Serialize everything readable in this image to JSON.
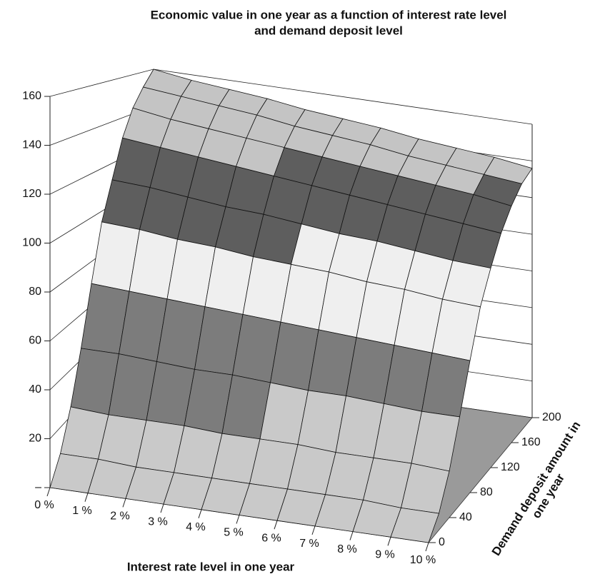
{
  "chart_data": {
    "type": "surface",
    "title": [
      "Economic value in one year as a function of interest rate level",
      "and demand deposit level"
    ],
    "xlabel": "Interest rate level in one year",
    "ylabel": [
      "Demand deposit amount in",
      "one year"
    ],
    "x": [
      0,
      1,
      2,
      3,
      4,
      5,
      6,
      7,
      8,
      9,
      10
    ],
    "y": [
      0,
      20,
      40,
      60,
      80,
      100,
      120,
      140,
      160,
      180,
      200
    ],
    "z": [
      [
        0,
        0,
        0,
        0,
        0,
        0,
        0,
        0,
        0,
        0,
        0
      ],
      [
        9,
        9,
        8,
        8,
        8,
        8,
        8,
        8,
        8,
        7,
        7
      ],
      [
        24,
        23,
        23,
        23,
        22,
        22,
        22,
        21,
        21,
        21,
        20
      ],
      [
        45,
        45,
        44,
        43,
        43,
        42,
        41,
        41,
        40,
        39,
        39
      ],
      [
        70,
        69,
        68,
        67,
        66,
        65,
        64,
        63,
        62,
        61,
        60
      ],
      [
        95,
        94,
        92,
        91,
        89,
        88,
        87,
        85,
        84,
        82,
        81
      ],
      [
        112,
        111,
        109,
        107,
        106,
        104,
        102,
        101,
        99,
        97,
        96
      ],
      [
        130,
        128,
        126,
        124,
        122,
        120,
        118,
        116,
        114,
        112,
        110
      ],
      [
        143,
        140,
        138,
        136,
        134,
        132,
        130,
        128,
        126,
        124,
        121
      ],
      [
        152,
        150,
        148,
        146,
        143,
        141,
        139,
        136,
        134,
        132,
        130
      ],
      [
        160,
        157,
        155,
        153,
        150,
        148,
        146,
        143,
        141,
        139,
        136
      ]
    ],
    "xlim": [
      0,
      10
    ],
    "ylim": [
      0,
      200
    ],
    "zlim": [
      0,
      160
    ],
    "xticks": [
      {
        "value": 0,
        "label": "0 %"
      },
      {
        "value": 1,
        "label": "1 %"
      },
      {
        "value": 2,
        "label": "2 %"
      },
      {
        "value": 3,
        "label": "3 %"
      },
      {
        "value": 4,
        "label": "4 %"
      },
      {
        "value": 5,
        "label": "5 %"
      },
      {
        "value": 6,
        "label": "6 %"
      },
      {
        "value": 7,
        "label": "7 %"
      },
      {
        "value": 8,
        "label": "8 %"
      },
      {
        "value": 9,
        "label": "9 %"
      },
      {
        "value": 10,
        "label": "10 %"
      }
    ],
    "yticks": [
      0,
      40,
      80,
      120,
      160,
      200
    ],
    "zticks": [
      {
        "value": 0,
        "label": "–"
      },
      20,
      40,
      60,
      80,
      100,
      120,
      140,
      160
    ],
    "surface_colors": [
      "#c9c9c9",
      "#7c7c7c",
      "#efefef",
      "#5e5e5e",
      "#c4c4c4"
    ],
    "floor_color": "#9a9a9a",
    "grid": true
  }
}
